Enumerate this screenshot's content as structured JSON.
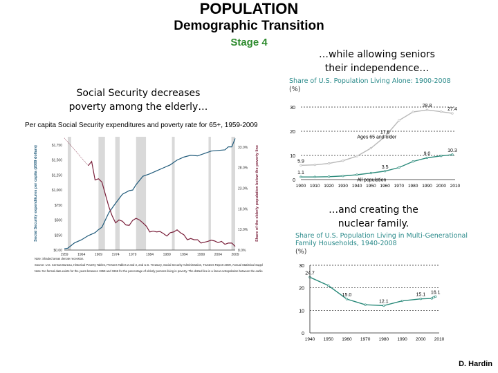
{
  "slide": {
    "title": "POPULATION",
    "subtitle": "Demographic Transition",
    "stage": "Stage 4",
    "caption_right_top_1": "…while allowing seniors",
    "caption_right_top_2": "their independence…",
    "caption_left_1": "Social Security decreases",
    "caption_left_2": "poverty among the elderly…",
    "caption_right_bottom_1": "…and creating the",
    "caption_right_bottom_2": "nuclear family.",
    "author": "D. Hardin",
    "colors": {
      "stage": "#2e8b2e",
      "chart_title": "#2a8a8a",
      "ss_line": "#1f5a7a",
      "poverty_line": "#7a1f3a",
      "recession": "#d9d9d9",
      "alone_all": "#2a8a7a",
      "alone_65": "#b8b8b8"
    }
  },
  "chart_data": [
    {
      "type": "line",
      "title": "Per capita Social Security expenditures and poverty rate for 65+, 1959-2009",
      "ylabel": "Social Security expenditures per capita (2009 dollars)",
      "y2label": "Share of the elderly population below the poverty line",
      "ylim": [
        0,
        1750
      ],
      "y2lim": [
        8,
        35.5
      ],
      "yticks": [
        "$0.00",
        "$250",
        "$500",
        "$750",
        "$1,000",
        "$1,250",
        "$1,500",
        "$1,750"
      ],
      "y2ticks": [
        "8.0%",
        "13.0%",
        "18.0%",
        "23.0%",
        "28.0%",
        "33.0%"
      ],
      "xticks": [
        "1959",
        "1964",
        "1969",
        "1974",
        "1979",
        "1984",
        "1989",
        "1994",
        "1999",
        "2004",
        "2009"
      ],
      "recessions": [
        [
          1960,
          1961
        ],
        [
          1969,
          1970.9
        ],
        [
          1973.9,
          1975.2
        ],
        [
          1980,
          1982.9
        ],
        [
          1990.5,
          1991.3
        ],
        [
          2001.2,
          2001.9
        ],
        [
          2007.9,
          2009
        ]
      ],
      "series": [
        {
          "axis": "left",
          "x": [
            1959,
            1960,
            1962,
            1964,
            1966,
            1968,
            1969,
            1970,
            1972,
            1974,
            1976,
            1978,
            1979,
            1980,
            1982,
            1984,
            1986,
            1988,
            1990,
            1992,
            1994,
            1996,
            1998,
            2000,
            2002,
            2004,
            2006,
            2007,
            2008,
            2009
          ],
          "y": [
            20,
            30,
            120,
            170,
            240,
            290,
            340,
            380,
            620,
            780,
            930,
            990,
            1000,
            1090,
            1230,
            1270,
            1320,
            1370,
            1420,
            1500,
            1550,
            1580,
            1570,
            1610,
            1650,
            1660,
            1670,
            1720,
            1720,
            1860
          ]
        },
        {
          "axis": "right",
          "dotted_until": 1966,
          "x": [
            1959,
            1966,
            1967,
            1968,
            1969,
            1970,
            1972,
            1973,
            1974,
            1975,
            1976,
            1977,
            1978,
            1979,
            1980,
            1981,
            1982,
            1983,
            1984,
            1985,
            1986,
            1987,
            1988,
            1989,
            1990,
            1991,
            1992,
            1993,
            1994,
            1995,
            1996,
            1997,
            1998,
            1999,
            2000,
            2001,
            2002,
            2003,
            2004,
            2005,
            2006,
            2007,
            2008,
            2009
          ],
          "y": [
            35.2,
            28.5,
            29.5,
            25.0,
            25.3,
            24.5,
            18.6,
            16.3,
            14.6,
            15.3,
            15.0,
            14.1,
            14.0,
            15.2,
            15.7,
            15.3,
            14.6,
            13.8,
            12.4,
            12.6,
            12.4,
            12.5,
            12.0,
            11.4,
            12.2,
            12.4,
            12.9,
            12.2,
            11.7,
            10.5,
            10.8,
            10.5,
            10.5,
            9.7,
            9.9,
            10.1,
            10.4,
            10.2,
            9.8,
            10.1,
            9.4,
            9.7,
            9.7,
            8.9
          ]
        }
      ],
      "notes": [
        "Note: Shaded areas denote recession.",
        "Source: U.S. Census Bureau, Historical Poverty Tables, Persons Tables 2 and 3, and U.S. Treasury, Social Security Administration, Trustees Report 2009, Annual Statistical Supplement.",
        "Note: No formal data exists for the years between 1959 and 1966 for the percentage of elderly persons living in poverty. The dotted line is a linear extrapolation between the earliest data point (1959) and the beginning of the complete series (1966)."
      ]
    },
    {
      "type": "line",
      "title": "Share of U.S. Population Living Alone: 1900-2008",
      "unit": "(%)",
      "ylim": [
        0,
        30
      ],
      "yticks": [
        "0",
        "10",
        "20",
        "30"
      ],
      "xticks": [
        "1900",
        "1910",
        "1920",
        "1930",
        "1940",
        "1950",
        "1960",
        "1970",
        "1980",
        "1990",
        "2000",
        "2010"
      ],
      "series": [
        {
          "name": "Ages 65 and older",
          "x": [
            1900,
            1910,
            1920,
            1930,
            1940,
            1950,
            1960,
            1970,
            1980,
            1990,
            2000,
            2008
          ],
          "y": [
            5.9,
            6.1,
            6.7,
            7.8,
            9.7,
            13.0,
            17.8,
            24.5,
            28.0,
            28.8,
            28.1,
            27.4
          ],
          "labels": {
            "1900": "5.9",
            "1960": "17.8",
            "1990": "28.8",
            "2008": "27.4"
          }
        },
        {
          "name": "All population",
          "x": [
            1900,
            1910,
            1920,
            1930,
            1940,
            1950,
            1960,
            1970,
            1980,
            1990,
            2000,
            2008
          ],
          "y": [
            1.1,
            1.1,
            1.2,
            1.5,
            2.0,
            2.7,
            3.5,
            5.0,
            7.5,
            9.0,
            9.8,
            10.3
          ],
          "labels": {
            "1900": "1.1",
            "1960": "3.5",
            "1990": "9.0",
            "2008": "10.3"
          }
        }
      ]
    },
    {
      "type": "line",
      "title": "Share of U.S. Population Living in Multi-Generational Family Households, 1940-2008",
      "unit": "(%)",
      "ylim": [
        0,
        30
      ],
      "yticks": [
        "0",
        "10",
        "20",
        "30"
      ],
      "xticks": [
        "1940",
        "1950",
        "1960",
        "1970",
        "1980",
        "1990",
        "2000",
        "2010"
      ],
      "series": [
        {
          "x": [
            1940,
            1950,
            1960,
            1970,
            1980,
            1990,
            2000,
            2006,
            2007,
            2008
          ],
          "y": [
            24.7,
            21.0,
            15.0,
            12.5,
            12.1,
            14.2,
            15.1,
            15.3,
            15.8,
            16.1
          ],
          "labels": {
            "1940": "24.7",
            "1960": "15.0",
            "1980": "12.1",
            "2000": "15.1",
            "2008": "16.1"
          }
        }
      ]
    }
  ]
}
